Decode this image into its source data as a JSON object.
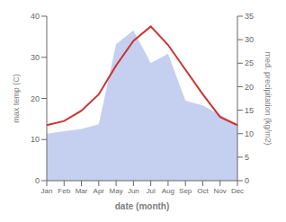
{
  "chart_data": {
    "type": "line",
    "xlabel": "date (month)",
    "ylabel": "max temp (C)",
    "y2label": "med. precipitation (kg/m2)",
    "categories": [
      "Jan",
      "Feb",
      "Mar",
      "Apr",
      "May",
      "Jun",
      "Jul",
      "Aug",
      "Sep",
      "Oct",
      "Nov",
      "Dec"
    ],
    "series": [
      {
        "type": "area",
        "axis": "y2",
        "color": "#c5d0f0",
        "values": [
          10.0,
          10.5,
          11.0,
          12.0,
          29.0,
          32.0,
          25.0,
          27.0,
          17.0,
          16.0,
          14.0,
          12.0
        ]
      },
      {
        "type": "line",
        "color": "#cc3333",
        "values": [
          13.5,
          14.5,
          17.0,
          21.0,
          28.0,
          34.0,
          37.5,
          33.0,
          27.0,
          21.0,
          15.5,
          13.5
        ]
      }
    ],
    "ylim": [
      0,
      40
    ],
    "yticks": [
      0,
      10,
      20,
      30,
      40
    ],
    "y2lim": [
      0,
      35
    ],
    "y2ticks": [
      0,
      5,
      10,
      15,
      20,
      25,
      30,
      35
    ],
    "grid": false
  }
}
